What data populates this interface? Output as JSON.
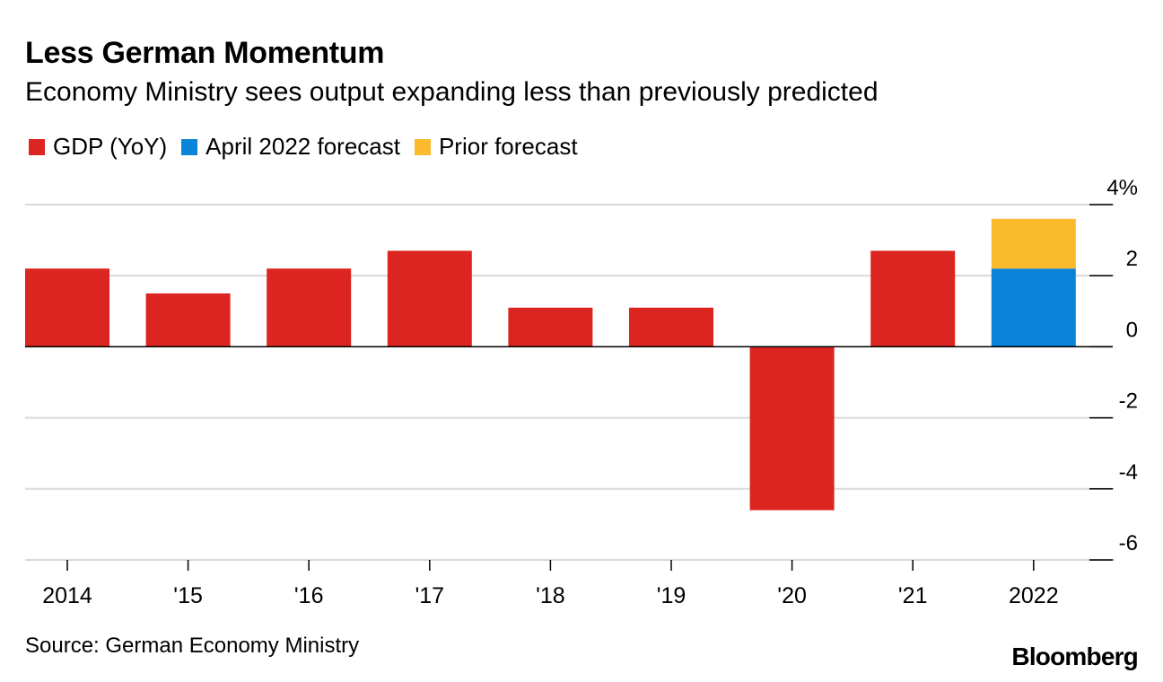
{
  "header": {
    "title": "Less German Momentum",
    "subtitle": "Economy Ministry sees output expanding less than previously predicted"
  },
  "legend": [
    {
      "label": "GDP (YoY)",
      "color": "#dc2520"
    },
    {
      "label": "April 2022 forecast",
      "color": "#0a84d8"
    },
    {
      "label": "Prior forecast",
      "color": "#fbba2c"
    }
  ],
  "footer": {
    "source": "Source: German Economy Ministry",
    "brand": "Bloomberg"
  },
  "chart_data": {
    "type": "bar",
    "stacked": true,
    "title": "Less German Momentum",
    "subtitle": "Economy Ministry sees output expanding less than previously predicted",
    "categories": [
      "2014",
      "'15",
      "'16",
      "'17",
      "'18",
      "'19",
      "'20",
      "'21",
      "2022"
    ],
    "series": [
      {
        "name": "GDP (YoY)",
        "color": "#dc2520",
        "values": [
          2.2,
          1.5,
          2.2,
          2.7,
          1.1,
          1.1,
          -4.6,
          2.7,
          null
        ]
      },
      {
        "name": "April 2022 forecast",
        "color": "#0a84d8",
        "values": [
          null,
          null,
          null,
          null,
          null,
          null,
          null,
          null,
          2.2
        ]
      },
      {
        "name": "Prior forecast",
        "color": "#fbba2c",
        "values": [
          null,
          null,
          null,
          null,
          null,
          null,
          null,
          null,
          1.4
        ]
      }
    ],
    "ylim": [
      -6,
      4
    ],
    "yticks": [
      4,
      2,
      0,
      -2,
      -4,
      -6
    ],
    "ytick_labels": [
      "4%",
      "2",
      "0",
      "-2",
      "-4",
      "-6"
    ],
    "xlabel": "",
    "ylabel": "",
    "grid": true,
    "y_axis_side": "right"
  }
}
